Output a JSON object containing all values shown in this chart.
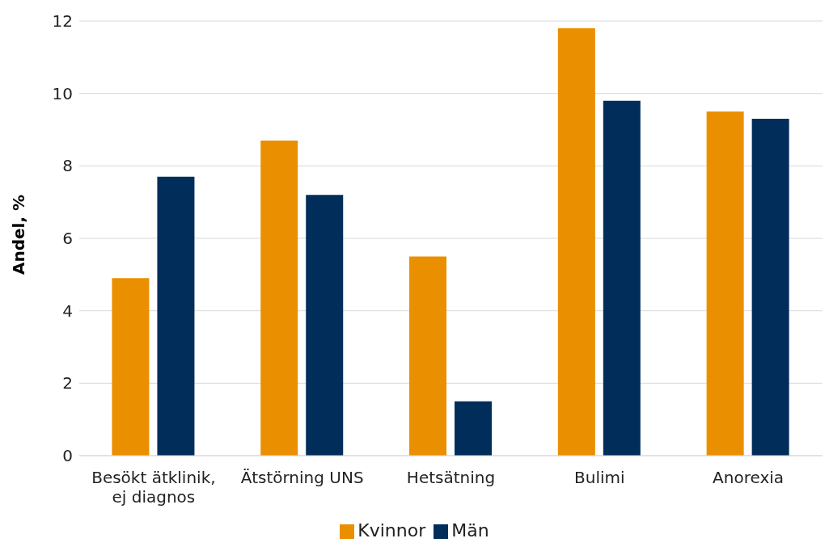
{
  "chart_data": {
    "type": "bar",
    "ylabel": "Andel, %",
    "categories": [
      "Besökt ätklinik, ej diagnos",
      "Ätstörning UNS",
      "Hetsätning",
      "Bulimi",
      "Anorexia"
    ],
    "series": [
      {
        "name": "Kvinnor",
        "color": "#ea8f00",
        "values": [
          4.9,
          8.7,
          5.5,
          11.8,
          9.5
        ]
      },
      {
        "name": "Män",
        "color": "#002d5a",
        "values": [
          7.7,
          7.2,
          1.5,
          9.8,
          9.3
        ]
      }
    ],
    "ylim": [
      0,
      12
    ],
    "yticks": [
      0,
      2,
      4,
      6,
      8,
      10,
      12
    ],
    "grid": "y",
    "legend": "bottom"
  }
}
